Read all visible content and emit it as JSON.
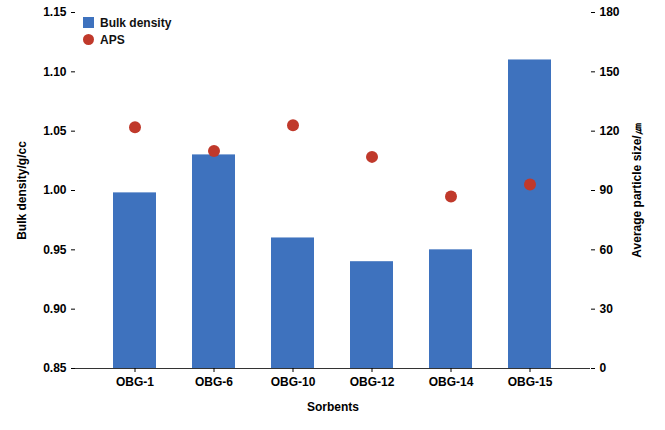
{
  "chart_data": {
    "type": "bar",
    "x_label": "Sorbents",
    "y_label": "Bulk density/g/cc",
    "y2_label": "Average particle size/㎛",
    "categories": [
      "OBG-1",
      "OBG-6",
      "OBG-10",
      "OBG-12",
      "OBG-14",
      "OBG-15"
    ],
    "series": [
      {
        "name": "Bulk density",
        "type": "bar",
        "color": "#3e72be",
        "values": [
          0.998,
          1.03,
          0.96,
          0.94,
          0.95,
          1.11
        ]
      },
      {
        "name": "APS",
        "type": "scatter",
        "axis": "y2",
        "marker": "circle",
        "color": "#c0392b",
        "values": [
          122,
          110,
          123,
          107,
          87,
          93
        ]
      }
    ],
    "ylim": [
      0.85,
      1.15
    ],
    "yticks": [
      0.85,
      {
        "value": 0.9,
        "label": "0.90"
      },
      0.95,
      {
        "value": 1,
        "label": "1.00"
      },
      1.05,
      {
        "value": 1.1,
        "label": "1.10"
      },
      1.15
    ],
    "y2lim": [
      0,
      180
    ],
    "y2ticks": [
      0,
      30,
      60,
      90,
      120,
      150,
      180
    ],
    "legend": "upper left",
    "grid": false
  }
}
